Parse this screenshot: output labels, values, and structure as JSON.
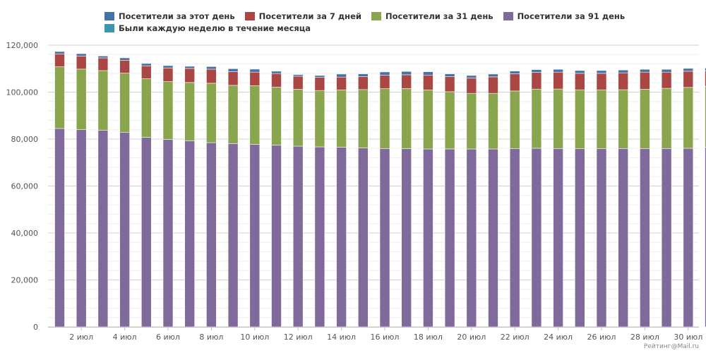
{
  "chart_data": {
    "type": "bar",
    "stacked": true,
    "title": "",
    "xlabel": "",
    "ylabel": "",
    "ylim": [
      0,
      120000
    ],
    "y_ticks": [
      0,
      20000,
      40000,
      60000,
      80000,
      100000,
      120000
    ],
    "y_tick_labels": [
      "0",
      "20,000",
      "40,000",
      "60,000",
      "80,000",
      "100,000",
      "120,000"
    ],
    "grid": true,
    "legend_position": "top",
    "categories": [
      "1 июл",
      "2 июл",
      "3 июл",
      "4 июл",
      "5 июл",
      "6 июл",
      "7 июл",
      "8 июл",
      "9 июл",
      "10 июл",
      "11 июл",
      "12 июл",
      "13 июл",
      "14 июл",
      "15 июл",
      "16 июл",
      "17 июл",
      "18 июл",
      "19 июл",
      "20 июл",
      "21 июл",
      "22 июл",
      "23 июл",
      "24 июл",
      "25 июл",
      "26 июл",
      "27 июл",
      "28 июл",
      "29 июл",
      "30 июл",
      "31 июл"
    ],
    "x_tick_labels": [
      "2 июл",
      "4 июл",
      "6 июл",
      "8 июл",
      "10 июл",
      "12 июл",
      "14 июл",
      "16 июл",
      "18 июл",
      "20 июл",
      "22 июл",
      "24 июл",
      "26 июл",
      "28 июл",
      "30 июл"
    ],
    "x_tick_categories": [
      "2 июл",
      "4 июл",
      "6 июл",
      "8 июл",
      "10 июл",
      "12 июл",
      "14 июл",
      "16 июл",
      "18 июл",
      "20 июл",
      "22 июл",
      "24 июл",
      "26 июл",
      "28 июл",
      "30 июл"
    ],
    "stack_order": [
      "Посетители за 91 день",
      "Посетители за 31 день",
      "Посетители за 7 дней",
      "Посетители за этот день"
    ],
    "series": [
      {
        "name": "Посетители за этот день",
        "color": "#4572A7",
        "values": [
          1000,
          1000,
          800,
          1000,
          1000,
          1000,
          900,
          1100,
          1300,
          1300,
          1000,
          700,
          800,
          1300,
          1200,
          1400,
          1400,
          1400,
          1200,
          1100,
          1200,
          1200,
          1200,
          1200,
          1200,
          1200,
          1200,
          1200,
          1200,
          1200,
          1300
        ]
      },
      {
        "name": "Посетители за 7 дней",
        "color": "#AA4643",
        "values": [
          5500,
          5600,
          5400,
          5500,
          5500,
          5800,
          6000,
          6000,
          5800,
          5800,
          5800,
          5600,
          5600,
          5500,
          5500,
          5700,
          5900,
          6400,
          6400,
          6500,
          7000,
          7300,
          7100,
          7200,
          7000,
          7000,
          7200,
          7300,
          6900,
          6900,
          6600
        ]
      },
      {
        "name": "Посетители за 31 день",
        "color": "#89A54E",
        "values": [
          26300,
          25800,
          25500,
          25300,
          25000,
          24700,
          24800,
          25300,
          24800,
          25000,
          24700,
          24200,
          24000,
          24400,
          24900,
          25500,
          25600,
          25100,
          24400,
          23700,
          23700,
          24500,
          25200,
          25300,
          25100,
          25100,
          25000,
          25200,
          25600,
          25900,
          25900
        ]
      },
      {
        "name": "Посетители за 91 день",
        "color": "#80699B",
        "values": [
          84500,
          84000,
          83700,
          82800,
          80700,
          79800,
          79300,
          78500,
          78100,
          77700,
          77400,
          77000,
          76700,
          76500,
          76200,
          76000,
          75900,
          75800,
          75800,
          75800,
          75800,
          76000,
          76100,
          76000,
          75900,
          75900,
          76000,
          76000,
          76000,
          76100,
          76500
        ]
      },
      {
        "name": "Были каждую неделю в течение месяца",
        "color": "#3D96AE",
        "values": [
          0,
          0,
          0,
          0,
          0,
          0,
          0,
          0,
          0,
          0,
          0,
          0,
          0,
          0,
          0,
          0,
          0,
          0,
          0,
          0,
          0,
          0,
          0,
          0,
          0,
          0,
          0,
          0,
          0,
          0,
          0
        ]
      }
    ]
  },
  "legend": {
    "row1": [
      {
        "label": "Посетители за этот день",
        "color": "#4572A7"
      },
      {
        "label": "Посетители за 7 дней",
        "color": "#AA4643"
      },
      {
        "label": "Посетители за 31 день",
        "color": "#89A54E"
      },
      {
        "label": "Посетители за 91 день",
        "color": "#80699B"
      }
    ],
    "row2": [
      {
        "label": "Были каждую неделю в течение месяца",
        "color": "#3D96AE"
      }
    ]
  },
  "credit": "Рейтинг@Mail.ru"
}
